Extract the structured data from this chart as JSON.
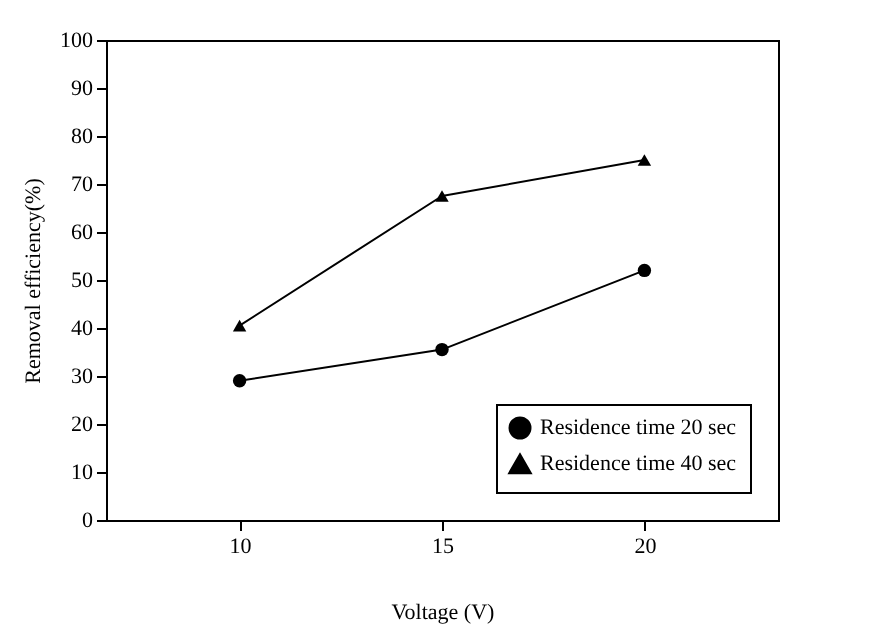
{
  "chart_data": {
    "type": "line",
    "xlabel": "Voltage (V)",
    "ylabel": "Removal efficiency(%)",
    "categories": [
      "10",
      "15",
      "20"
    ],
    "series": [
      {
        "name": "Residence time 20 sec",
        "color": "#000000",
        "marker": "circle",
        "values": [
          29,
          35.5,
          52
        ]
      },
      {
        "name": "Residence time 40 sec",
        "color": "#000000",
        "marker": "triangle",
        "values": [
          40.5,
          67.5,
          75
        ]
      }
    ],
    "ylim": [
      0,
      100
    ],
    "yticks": [
      0,
      10,
      20,
      30,
      40,
      50,
      60,
      70,
      80,
      90,
      100
    ],
    "grid": false,
    "legend": "bottom right",
    "line_style": "solid"
  }
}
